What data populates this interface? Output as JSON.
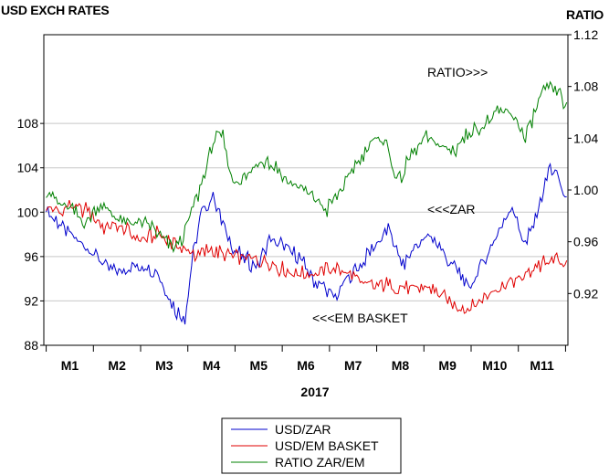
{
  "chart_data": {
    "type": "line",
    "left_axis_title": "USD EXCH RATES",
    "right_axis_title": "RATIO",
    "xlabel": "2017",
    "x_categories": [
      "M1",
      "M2",
      "M3",
      "M4",
      "M5",
      "M6",
      "M7",
      "M8",
      "M9",
      "M10",
      "M11"
    ],
    "left_ylim": [
      88,
      116
    ],
    "left_ticks": [
      "88",
      "92",
      "96",
      "100",
      "104",
      "108"
    ],
    "right_ylim": [
      0.88,
      1.12
    ],
    "right_ticks": [
      "0.92",
      "0.96",
      "1.00",
      "1.04",
      "1.08",
      "1.12"
    ],
    "grid": true,
    "legend_position": "bottom",
    "annotations": [
      {
        "text": "RATIO>>>",
        "series": "RATIO ZAR/EM"
      },
      {
        "text": "<<<ZAR",
        "series": "USD/ZAR"
      },
      {
        "text": "<<<EM BASKET",
        "series": "USD/EM BASKET"
      }
    ],
    "series": [
      {
        "name": "USD/ZAR",
        "axis": "left",
        "color": "#0000cc",
        "x": [
          0.05,
          0.3,
          0.7,
          1.0,
          1.3,
          1.55,
          1.8,
          2.1,
          2.4,
          2.6,
          2.8,
          3.0,
          3.15,
          3.35,
          3.6,
          3.9,
          4.2,
          4.5,
          4.8,
          5.1,
          5.4,
          5.7,
          5.9,
          6.2,
          6.4,
          6.7,
          7.0,
          7.3,
          7.6,
          7.9,
          8.2,
          8.5,
          8.8,
          9.0,
          9.3,
          9.6,
          9.9,
          10.2,
          10.5,
          10.7,
          10.9,
          11.1
        ],
        "values": [
          100.5,
          99,
          97.5,
          96.5,
          95,
          94.5,
          94.8,
          95.2,
          94.6,
          92.8,
          91,
          90.6,
          96,
          100,
          101.5,
          97.5,
          96,
          95,
          97.5,
          97,
          96,
          94,
          93.5,
          92.2,
          94,
          95.2,
          97,
          98.5,
          95,
          97,
          98,
          96,
          94.5,
          93,
          95.5,
          98,
          100.5,
          97,
          100.5,
          104,
          103,
          100.5
        ]
      },
      {
        "name": "USD/EM BASKET",
        "axis": "left",
        "color": "#e00000",
        "x": [
          0.05,
          0.3,
          0.6,
          1.0,
          1.3,
          1.6,
          2.0,
          2.4,
          2.8,
          3.0,
          3.2,
          3.5,
          3.8,
          4.1,
          4.4,
          4.8,
          5.1,
          5.4,
          5.7,
          6.0,
          6.3,
          6.6,
          6.9,
          7.2,
          7.5,
          7.8,
          8.1,
          8.4,
          8.7,
          8.9,
          9.2,
          9.5,
          9.8,
          10.1,
          10.4,
          10.7,
          10.9,
          11.1
        ],
        "values": [
          100.5,
          100,
          100.5,
          100,
          98.5,
          98.8,
          97.5,
          98,
          97,
          96.5,
          96.2,
          96.5,
          96.2,
          96,
          95.8,
          95.3,
          94.8,
          94.5,
          94.3,
          95,
          94.8,
          94.2,
          93.2,
          93.5,
          93.2,
          93,
          93.3,
          92.6,
          91.8,
          91.2,
          92,
          93,
          93.5,
          94,
          95,
          95.5,
          95.7,
          94.8
        ]
      },
      {
        "name": "RATIO ZAR/EM",
        "axis": "right",
        "color": "#008000",
        "x": [
          0.05,
          0.3,
          0.6,
          0.9,
          1.2,
          1.5,
          1.8,
          2.1,
          2.4,
          2.7,
          2.9,
          3.1,
          3.3,
          3.6,
          3.8,
          4.0,
          4.3,
          4.6,
          4.9,
          5.2,
          5.5,
          5.8,
          6.0,
          6.3,
          6.6,
          6.9,
          7.2,
          7.5,
          7.8,
          8.1,
          8.4,
          8.7,
          9.0,
          9.3,
          9.6,
          9.9,
          10.2,
          10.5,
          10.7,
          10.9,
          11.1
        ],
        "values": [
          1.0,
          0.99,
          0.985,
          0.975,
          0.99,
          0.98,
          0.973,
          0.975,
          0.968,
          0.955,
          0.96,
          0.98,
          1.0,
          1.04,
          1.04,
          1.005,
          1.01,
          1.025,
          1.018,
          1.005,
          1.0,
          0.99,
          0.985,
          1.0,
          1.02,
          1.035,
          1.04,
          1.005,
          1.03,
          1.04,
          1.035,
          1.03,
          1.045,
          1.05,
          1.06,
          1.06,
          1.04,
          1.07,
          1.08,
          1.075,
          1.06
        ]
      }
    ]
  }
}
